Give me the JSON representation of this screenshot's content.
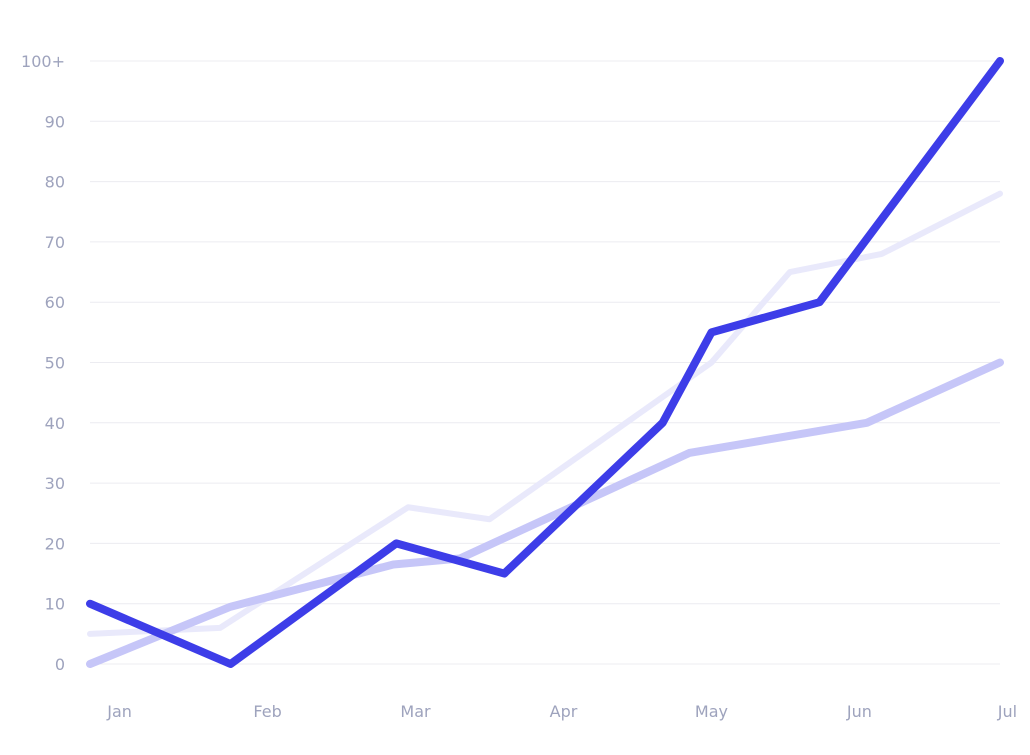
{
  "chart_data": {
    "type": "line",
    "title": "",
    "xlabel": "",
    "ylabel": "",
    "grid": true,
    "ylim": [
      0,
      100
    ],
    "yticks": [
      {
        "value": 0,
        "label": "0"
      },
      {
        "value": 10,
        "label": "10"
      },
      {
        "value": 20,
        "label": "20"
      },
      {
        "value": 30,
        "label": "30"
      },
      {
        "value": 40,
        "label": "40"
      },
      {
        "value": 50,
        "label": "50"
      },
      {
        "value": 60,
        "label": "60"
      },
      {
        "value": 70,
        "label": "70"
      },
      {
        "value": 80,
        "label": "80"
      },
      {
        "value": 90,
        "label": "90"
      },
      {
        "value": 100,
        "label": "100+"
      }
    ],
    "xlim": [
      0,
      6.15
    ],
    "xticks": [
      {
        "value": 0.2,
        "label": "Jan"
      },
      {
        "value": 1.2,
        "label": "Feb"
      },
      {
        "value": 2.2,
        "label": "Mar"
      },
      {
        "value": 3.2,
        "label": "Apr"
      },
      {
        "value": 4.2,
        "label": "May"
      },
      {
        "value": 5.2,
        "label": "Jun"
      },
      {
        "value": 6.2,
        "label": "Jul"
      }
    ],
    "series": [
      {
        "color": "#e9e9fb",
        "width": 6,
        "points": [
          {
            "x": 0.0,
            "y": 5
          },
          {
            "x": 0.88,
            "y": 6
          },
          {
            "x": 2.15,
            "y": 26
          },
          {
            "x": 2.7,
            "y": 24
          },
          {
            "x": 4.2,
            "y": 50
          },
          {
            "x": 4.73,
            "y": 65
          },
          {
            "x": 5.35,
            "y": 68
          },
          {
            "x": 6.15,
            "y": 78
          }
        ]
      },
      {
        "color": "#c6c6f8",
        "width": 8,
        "points": [
          {
            "x": 0.0,
            "y": 0
          },
          {
            "x": 0.95,
            "y": 9.5
          },
          {
            "x": 2.05,
            "y": 16.5
          },
          {
            "x": 2.5,
            "y": 17.5
          },
          {
            "x": 4.05,
            "y": 35
          },
          {
            "x": 5.25,
            "y": 40
          },
          {
            "x": 6.15,
            "y": 50
          }
        ]
      },
      {
        "color": "#3d3de8",
        "width": 8,
        "points": [
          {
            "x": 0.0,
            "y": 10
          },
          {
            "x": 0.95,
            "y": 0
          },
          {
            "x": 2.07,
            "y": 20
          },
          {
            "x": 2.8,
            "y": 15
          },
          {
            "x": 3.87,
            "y": 40
          },
          {
            "x": 4.2,
            "y": 55
          },
          {
            "x": 4.93,
            "y": 60
          },
          {
            "x": 6.15,
            "y": 100
          }
        ]
      }
    ]
  }
}
